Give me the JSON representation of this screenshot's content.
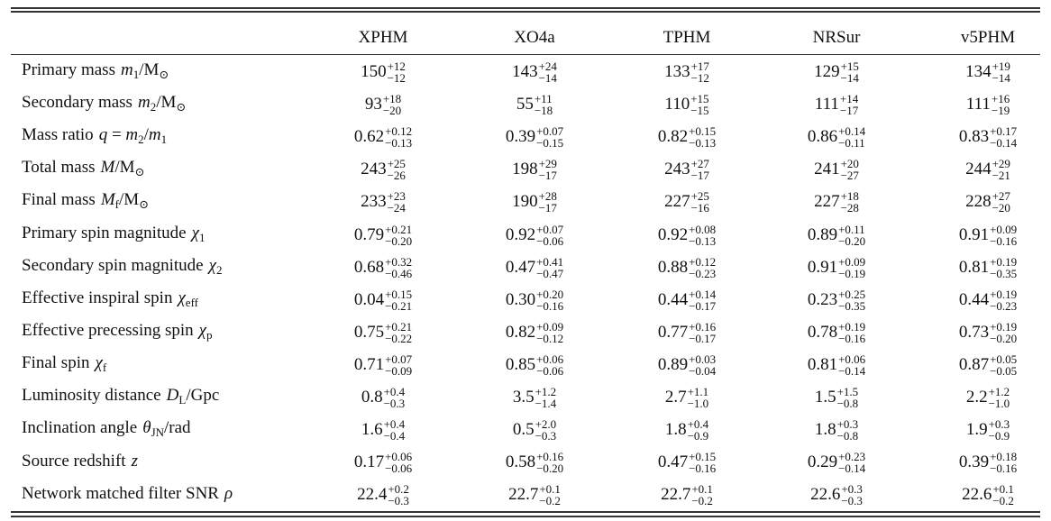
{
  "table": {
    "columns": [
      "XPHM",
      "XO4a",
      "TPHM",
      "NRSur",
      "v5PHM"
    ],
    "rows": [
      {
        "label": "Primary mass",
        "symbol": [
          {
            "i": "m"
          },
          {
            "sub": "1"
          },
          {
            "r": "/M"
          },
          {
            "sub": "⊙"
          }
        ],
        "cells": [
          [
            "150",
            "+12",
            "−12"
          ],
          [
            "143",
            "+24",
            "−14"
          ],
          [
            "133",
            "+17",
            "−12"
          ],
          [
            "129",
            "+15",
            "−14"
          ],
          [
            "134",
            "+19",
            "−14"
          ]
        ]
      },
      {
        "label": "Secondary mass",
        "symbol": [
          {
            "i": "m"
          },
          {
            "sub": "2"
          },
          {
            "r": "/M"
          },
          {
            "sub": "⊙"
          }
        ],
        "cells": [
          [
            "93",
            "+18",
            "−20"
          ],
          [
            "55",
            "+11",
            "−18"
          ],
          [
            "110",
            "+15",
            "−15"
          ],
          [
            "111",
            "+14",
            "−17"
          ],
          [
            "111",
            "+16",
            "−19"
          ]
        ]
      },
      {
        "label": "Mass ratio",
        "symbol": [
          {
            "i": "q"
          },
          {
            "r": " = "
          },
          {
            "i": "m"
          },
          {
            "sub": "2"
          },
          {
            "r": "/"
          },
          {
            "i": "m"
          },
          {
            "sub": "1"
          }
        ],
        "cells": [
          [
            "0.62",
            "+0.12",
            "−0.13"
          ],
          [
            "0.39",
            "+0.07",
            "−0.15"
          ],
          [
            "0.82",
            "+0.15",
            "−0.13"
          ],
          [
            "0.86",
            "+0.14",
            "−0.11"
          ],
          [
            "0.83",
            "+0.17",
            "−0.14"
          ]
        ]
      },
      {
        "label": "Total mass",
        "symbol": [
          {
            "i": "M"
          },
          {
            "r": "/M"
          },
          {
            "sub": "⊙"
          }
        ],
        "cells": [
          [
            "243",
            "+25",
            "−26"
          ],
          [
            "198",
            "+29",
            "−17"
          ],
          [
            "243",
            "+27",
            "−17"
          ],
          [
            "241",
            "+20",
            "−27"
          ],
          [
            "244",
            "+29",
            "−21"
          ]
        ]
      },
      {
        "label": "Final mass",
        "symbol": [
          {
            "i": "M"
          },
          {
            "sub": "f"
          },
          {
            "r": "/M"
          },
          {
            "sub": "⊙"
          }
        ],
        "cells": [
          [
            "233",
            "+23",
            "−24"
          ],
          [
            "190",
            "+28",
            "−17"
          ],
          [
            "227",
            "+25",
            "−16"
          ],
          [
            "227",
            "+18",
            "−28"
          ],
          [
            "228",
            "+27",
            "−20"
          ]
        ]
      },
      {
        "label": "Primary spin magnitude",
        "symbol": [
          {
            "i": "χ"
          },
          {
            "sub": "1"
          }
        ],
        "cells": [
          [
            "0.79",
            "+0.21",
            "−0.20"
          ],
          [
            "0.92",
            "+0.07",
            "−0.06"
          ],
          [
            "0.92",
            "+0.08",
            "−0.13"
          ],
          [
            "0.89",
            "+0.11",
            "−0.20"
          ],
          [
            "0.91",
            "+0.09",
            "−0.16"
          ]
        ]
      },
      {
        "label": "Secondary spin magnitude",
        "symbol": [
          {
            "i": "χ"
          },
          {
            "sub": "2"
          }
        ],
        "cells": [
          [
            "0.68",
            "+0.32",
            "−0.46"
          ],
          [
            "0.47",
            "+0.41",
            "−0.47"
          ],
          [
            "0.88",
            "+0.12",
            "−0.23"
          ],
          [
            "0.91",
            "+0.09",
            "−0.19"
          ],
          [
            "0.81",
            "+0.19",
            "−0.35"
          ]
        ]
      },
      {
        "label": "Effective inspiral spin",
        "symbol": [
          {
            "i": "χ"
          },
          {
            "sub": "eff"
          }
        ],
        "cells": [
          [
            "0.04",
            "+0.15",
            "−0.21"
          ],
          [
            "0.30",
            "+0.20",
            "−0.16"
          ],
          [
            "0.44",
            "+0.14",
            "−0.17"
          ],
          [
            "0.23",
            "+0.25",
            "−0.35"
          ],
          [
            "0.44",
            "+0.19",
            "−0.23"
          ]
        ]
      },
      {
        "label": "Effective precessing spin",
        "symbol": [
          {
            "i": "χ"
          },
          {
            "sub": "p"
          }
        ],
        "cells": [
          [
            "0.75",
            "+0.21",
            "−0.22"
          ],
          [
            "0.82",
            "+0.09",
            "−0.12"
          ],
          [
            "0.77",
            "+0.16",
            "−0.17"
          ],
          [
            "0.78",
            "+0.19",
            "−0.16"
          ],
          [
            "0.73",
            "+0.19",
            "−0.20"
          ]
        ]
      },
      {
        "label": "Final spin",
        "symbol": [
          {
            "i": "χ"
          },
          {
            "sub": "f"
          }
        ],
        "cells": [
          [
            "0.71",
            "+0.07",
            "−0.09"
          ],
          [
            "0.85",
            "+0.06",
            "−0.06"
          ],
          [
            "0.89",
            "+0.03",
            "−0.04"
          ],
          [
            "0.81",
            "+0.06",
            "−0.14"
          ],
          [
            "0.87",
            "+0.05",
            "−0.05"
          ]
        ]
      },
      {
        "label": "Luminosity distance",
        "symbol": [
          {
            "i": "D"
          },
          {
            "sub": "L"
          },
          {
            "r": "/Gpc"
          }
        ],
        "cells": [
          [
            "0.8",
            "+0.4",
            "−0.3"
          ],
          [
            "3.5",
            "+1.2",
            "−1.4"
          ],
          [
            "2.7",
            "+1.1",
            "−1.0"
          ],
          [
            "1.5",
            "+1.5",
            "−0.8"
          ],
          [
            "2.2",
            "+1.2",
            "−1.0"
          ]
        ]
      },
      {
        "label": "Inclination angle",
        "symbol": [
          {
            "i": "θ"
          },
          {
            "sub": "JN"
          },
          {
            "r": "/rad"
          }
        ],
        "cells": [
          [
            "1.6",
            "+0.4",
            "−0.4"
          ],
          [
            "0.5",
            "+2.0",
            "−0.3"
          ],
          [
            "1.8",
            "+0.4",
            "−0.9"
          ],
          [
            "1.8",
            "+0.3",
            "−0.8"
          ],
          [
            "1.9",
            "+0.3",
            "−0.9"
          ]
        ]
      },
      {
        "label": "Source redshift",
        "symbol": [
          {
            "i": "z"
          }
        ],
        "cells": [
          [
            "0.17",
            "+0.06",
            "−0.06"
          ],
          [
            "0.58",
            "+0.16",
            "−0.20"
          ],
          [
            "0.47",
            "+0.15",
            "−0.16"
          ],
          [
            "0.29",
            "+0.23",
            "−0.14"
          ],
          [
            "0.39",
            "+0.18",
            "−0.16"
          ]
        ]
      },
      {
        "label": "Network matched filter SNR",
        "symbol": [
          {
            "i": "ρ"
          }
        ],
        "cells": [
          [
            "22.4",
            "+0.2",
            "−0.3"
          ],
          [
            "22.7",
            "+0.1",
            "−0.2"
          ],
          [
            "22.7",
            "+0.1",
            "−0.2"
          ],
          [
            "22.6",
            "+0.3",
            "−0.3"
          ],
          [
            "22.6",
            "+0.1",
            "−0.2"
          ]
        ]
      }
    ]
  }
}
